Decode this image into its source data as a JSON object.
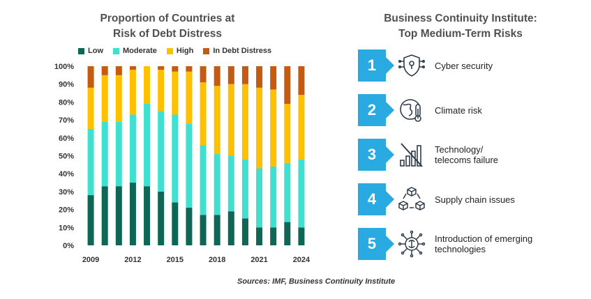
{
  "chart_data": {
    "type": "bar",
    "stacked": true,
    "title_line1": "Proportion  of Countries at",
    "title_line2": "Risk of Debt Distress",
    "categories": [
      "2009",
      "2010",
      "2011",
      "2012",
      "2013",
      "2014",
      "2015",
      "2016",
      "2017",
      "2018",
      "2019",
      "2020",
      "2021",
      "2022",
      "2023",
      "2024"
    ],
    "x_tick_labels": [
      "2009",
      "",
      "",
      "2012",
      "",
      "",
      "2015",
      "",
      "",
      "2018",
      "",
      "",
      "2021",
      "",
      "",
      "2024"
    ],
    "series": [
      {
        "name": "Low",
        "color": "#0e6655",
        "values": [
          28,
          33,
          33,
          35,
          33,
          30,
          24,
          21,
          17,
          17,
          19,
          15,
          10,
          10,
          13,
          10
        ]
      },
      {
        "name": "Moderate",
        "color": "#40e0d0",
        "values": [
          37,
          36,
          36,
          38,
          46,
          45,
          49,
          47,
          39,
          34,
          31,
          33,
          33,
          34,
          33,
          38
        ]
      },
      {
        "name": "High",
        "color": "#ffc000",
        "values": [
          23,
          26,
          26,
          25,
          21,
          23,
          24,
          29,
          35,
          38,
          40,
          42,
          45,
          43,
          33,
          36
        ]
      },
      {
        "name": "In Debt Distress",
        "color": "#c55a11",
        "values": [
          12,
          5,
          5,
          2,
          0,
          2,
          3,
          3,
          9,
          11,
          10,
          10,
          12,
          13,
          21,
          16
        ]
      }
    ],
    "yticks": [
      "0%",
      "10%",
      "20%",
      "30%",
      "40%",
      "50%",
      "60%",
      "70%",
      "80%",
      "90%",
      "100%"
    ],
    "ylim": [
      0,
      100
    ],
    "grid": false,
    "legend_position": "top"
  },
  "risks": {
    "title_line1": "Business Continuity Institute:",
    "title_line2": "Top Medium-Term  Risks",
    "items": [
      {
        "number": "1",
        "label": "Cyber security",
        "icon": "cyber-security-icon"
      },
      {
        "number": "2",
        "label": "Climate risk",
        "icon": "climate-risk-icon"
      },
      {
        "number": "3",
        "label": "Technology/\ntelecoms failure",
        "icon": "telecoms-failure-icon"
      },
      {
        "number": "4",
        "label": "Supply chain issues",
        "icon": "supply-chain-icon"
      },
      {
        "number": "5",
        "label": "Introduction of emerging\ntechnologies",
        "icon": "emerging-tech-icon"
      }
    ]
  },
  "source": "Sources: IMF, Business Continuity Institute"
}
